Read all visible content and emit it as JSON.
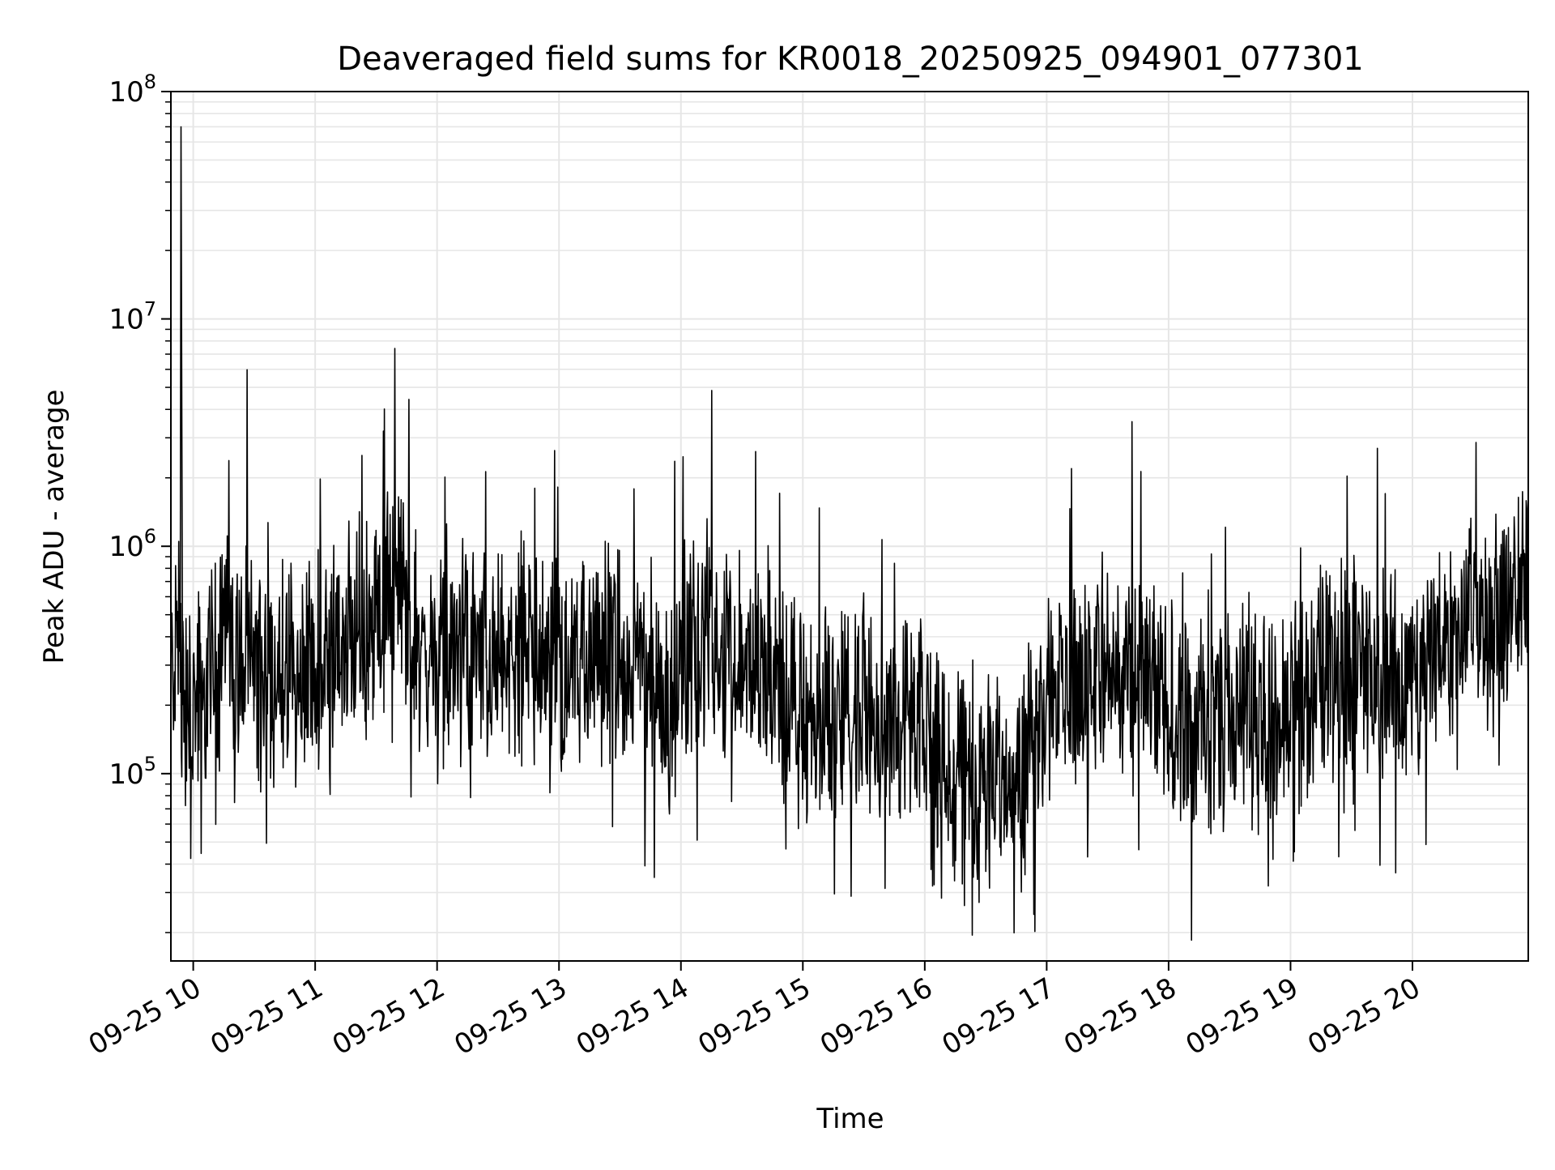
{
  "chart_data": {
    "type": "line",
    "title": "Deaveraged field sums for KR0018_20250925_094901_077301",
    "xlabel": "Time",
    "ylabel": "Peak ADU - average",
    "yscale": "log",
    "ylim": [
      15000,
      100000000
    ],
    "xlim": [
      "2025-09-25 09:49",
      "2025-09-25 20:57"
    ],
    "grid": true,
    "color": "#000000",
    "x_ticks": [
      {
        "t": "2025-09-25 10:00",
        "label": "09-25 10"
      },
      {
        "t": "2025-09-25 11:00",
        "label": "09-25 11"
      },
      {
        "t": "2025-09-25 12:00",
        "label": "09-25 12"
      },
      {
        "t": "2025-09-25 13:00",
        "label": "09-25 13"
      },
      {
        "t": "2025-09-25 14:00",
        "label": "09-25 14"
      },
      {
        "t": "2025-09-25 15:00",
        "label": "09-25 15"
      },
      {
        "t": "2025-09-25 16:00",
        "label": "09-25 16"
      },
      {
        "t": "2025-09-25 17:00",
        "label": "09-25 17"
      },
      {
        "t": "2025-09-25 18:00",
        "label": "09-25 18"
      },
      {
        "t": "2025-09-25 19:00",
        "label": "09-25 19"
      },
      {
        "t": "2025-09-25 20:00",
        "label": "09-25 20"
      }
    ],
    "y_ticks": [
      {
        "value": 100000,
        "base": "10",
        "exp": "5"
      },
      {
        "value": 1000000,
        "base": "10",
        "exp": "6"
      },
      {
        "value": 10000000,
        "base": "10",
        "exp": "7"
      },
      {
        "value": 100000000,
        "base": "10",
        "exp": "8"
      }
    ],
    "series": [
      {
        "x": [
          "2025-09-25 09:49",
          "2025-09-25 09:53",
          "2025-09-25 09:54",
          "2025-09-25 09:55",
          "2025-09-25 10:00",
          "2025-09-25 10:15",
          "2025-09-25 10:30",
          "2025-09-25 10:45",
          "2025-09-25 11:00",
          "2025-09-25 11:15",
          "2025-09-25 11:30",
          "2025-09-25 11:42",
          "2025-09-25 11:45",
          "2025-09-25 12:00",
          "2025-09-25 12:15",
          "2025-09-25 12:30",
          "2025-09-25 12:45",
          "2025-09-25 13:00",
          "2025-09-25 13:15",
          "2025-09-25 13:30",
          "2025-09-25 13:45",
          "2025-09-25 13:55",
          "2025-09-25 14:00",
          "2025-09-25 14:15",
          "2025-09-25 14:30",
          "2025-09-25 14:45",
          "2025-09-25 15:00",
          "2025-09-25 15:15",
          "2025-09-25 15:30",
          "2025-09-25 15:45",
          "2025-09-25 15:53",
          "2025-09-25 16:00",
          "2025-09-25 16:15",
          "2025-09-25 16:30",
          "2025-09-25 16:45",
          "2025-09-25 16:50",
          "2025-09-25 17:00",
          "2025-09-25 17:15",
          "2025-09-25 17:30",
          "2025-09-25 17:45",
          "2025-09-25 18:00",
          "2025-09-25 18:15",
          "2025-09-25 18:30",
          "2025-09-25 18:45",
          "2025-09-25 19:00",
          "2025-09-25 19:15",
          "2025-09-25 19:30",
          "2025-09-25 19:45",
          "2025-09-25 20:00",
          "2025-09-25 20:15",
          "2025-09-25 20:30",
          "2025-09-25 20:45",
          "2025-09-25 20:51",
          "2025-09-25 20:57"
        ],
        "y": [
          250000,
          500000,
          70000000,
          200000,
          180000,
          350000,
          300000,
          250000,
          300000,
          350000,
          450000,
          800000,
          400000,
          300000,
          350000,
          300000,
          350000,
          300000,
          350000,
          300000,
          280000,
          200000,
          350000,
          400000,
          300000,
          250000,
          170000,
          180000,
          200000,
          180000,
          150000,
          140000,
          110000,
          90000,
          120000,
          100000,
          200000,
          250000,
          300000,
          250000,
          200000,
          150000,
          170000,
          160000,
          160000,
          300000,
          300000,
          250000,
          250000,
          400000,
          500000,
          450000,
          600000,
          600000
        ]
      }
    ]
  }
}
